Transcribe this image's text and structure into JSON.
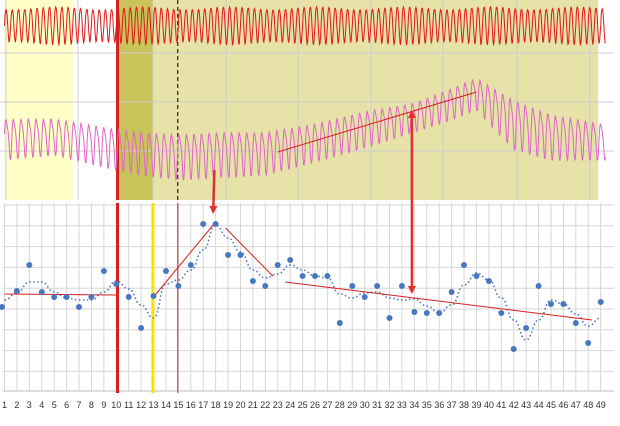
{
  "chart_data": [
    {
      "type": "line",
      "panel": "top",
      "title": "",
      "xlabel": "",
      "ylabel": "",
      "grid": true,
      "shaded_regions": [
        {
          "from": 1,
          "to": 6.5,
          "color": "#ffffc8"
        },
        {
          "from": 10.1,
          "to": 13,
          "color": "#c9c45a"
        },
        {
          "from": 13,
          "to": 48.8,
          "color": "#e6e2a8"
        }
      ],
      "vertical_markers": [
        {
          "x": 10.1,
          "color": "#d42020",
          "style": "solid"
        },
        {
          "x": 14.95,
          "color": "#000000",
          "style": "dashed"
        }
      ],
      "series": [
        {
          "color": "#e01818",
          "waveform": {
            "cycles_per_day": 2.0,
            "x_start": 1,
            "x_end": 49.4,
            "y_upper": 7,
            "y_lower": 45,
            "amplitude_variation": 0.15
          }
        },
        {
          "color": "#e065c8",
          "waveform": {
            "cycles_per_day": 1.65,
            "x_start": 1,
            "x_end": 49.4,
            "profile": [
              [
                1,
                115,
                160
              ],
              [
                5,
                115,
                155
              ],
              [
                10,
                125,
                170
              ],
              [
                12,
                128,
                175
              ],
              [
                15,
                130,
                180
              ],
              [
                18,
                128,
                178
              ],
              [
                22,
                128,
                175
              ],
              [
                26,
                120,
                162
              ],
              [
                30,
                108,
                148
              ],
              [
                34,
                100,
                132
              ],
              [
                37,
                85,
                120
              ],
              [
                39,
                75,
                110
              ],
              [
                42,
                95,
                150
              ],
              [
                45,
                110,
                160
              ],
              [
                49,
                120,
                160
              ]
            ]
          }
        }
      ],
      "trend_lines": [
        {
          "x1": 23,
          "y1": 152,
          "x2": 39,
          "y2": 92,
          "color": "#d42020"
        }
      ]
    },
    {
      "type": "scatter",
      "panel": "bottom",
      "title": "",
      "xlabel": "",
      "ylabel": "",
      "grid": true,
      "categories": [
        "1",
        "2",
        "3",
        "4",
        "5",
        "6",
        "7",
        "8",
        "9",
        "10",
        "11",
        "12",
        "13",
        "14",
        "15",
        "16",
        "17",
        "18",
        "19",
        "20",
        "21",
        "22",
        "23",
        "24",
        "25",
        "26",
        "27",
        "28",
        "29",
        "30",
        "31",
        "32",
        "33",
        "34",
        "35",
        "36",
        "37",
        "38",
        "39",
        "40",
        "41",
        "42",
        "43",
        "44",
        "45",
        "46",
        "47",
        "48",
        "49"
      ],
      "x": [
        0.8,
        2,
        3,
        4,
        5,
        6,
        7,
        8,
        9,
        10,
        11,
        12,
        13,
        14,
        15,
        16,
        17,
        18,
        19,
        20,
        21,
        22,
        23,
        24,
        25,
        26,
        27,
        28,
        29,
        30,
        31,
        32,
        33,
        34,
        35,
        36,
        37,
        38,
        39,
        40,
        41,
        42,
        43,
        44,
        45,
        46,
        47,
        48,
        49
      ],
      "y": [
        307,
        291,
        265,
        292,
        297,
        297,
        307,
        297,
        271,
        284,
        297,
        328,
        296,
        271,
        286,
        265,
        224,
        224,
        255,
        255,
        281,
        286,
        265,
        260,
        276,
        276,
        276,
        323,
        286,
        297,
        286,
        318,
        286,
        312,
        313,
        313,
        292,
        265,
        276,
        281,
        313,
        349,
        328,
        286,
        304,
        304,
        323,
        343,
        302
      ],
      "point_color": "#4a78c0",
      "smoothed_line": {
        "color": "#4a78c0",
        "style": "dotted",
        "y": [
          300,
          293,
          282,
          282,
          292,
          298,
          300,
          300,
          292,
          281,
          289,
          305,
          318,
          284,
          280,
          270,
          250,
          225,
          238,
          252,
          270,
          278,
          274,
          265,
          270,
          276,
          278,
          294,
          298,
          293,
          292,
          298,
          300,
          299,
          306,
          313,
          305,
          285,
          273,
          280,
          298,
          320,
          340,
          320,
          300,
          304,
          314,
          326,
          318
        ]
      },
      "vertical_markers": [
        {
          "x": 10.1,
          "color": "#d42020",
          "style": "solid",
          "thick": true
        },
        {
          "x": 12.95,
          "color": "#ffe000",
          "style": "solid",
          "thick": true
        },
        {
          "x": 14.95,
          "color": "#d42020",
          "style": "solid",
          "thick": false
        }
      ],
      "trend_lines": [
        {
          "x1": 1,
          "y1": 294,
          "x2": 10,
          "y2": 295,
          "color": "#d42020"
        },
        {
          "x1": 13,
          "y1": 297,
          "x2": 18,
          "y2": 222,
          "color": "#d42020"
        },
        {
          "x1": 18.8,
          "y1": 228,
          "x2": 22.6,
          "y2": 276,
          "color": "#d42020"
        },
        {
          "x1": 23.6,
          "y1": 282,
          "x2": 48.3,
          "y2": 320,
          "color": "#d42020"
        }
      ]
    }
  ],
  "arrows": [
    {
      "name": "arrow-down-to-peak",
      "color": "#e03030",
      "panel_from": "top",
      "x1": 17.9,
      "y1": 170,
      "x2": 17.8,
      "y2": 212,
      "double": false
    },
    {
      "name": "arrow-double-vertical",
      "color": "#e03030",
      "panel_from": "top",
      "x1": 33.8,
      "y1": 112,
      "x2": 33.8,
      "y2": 292,
      "double": true
    }
  ]
}
